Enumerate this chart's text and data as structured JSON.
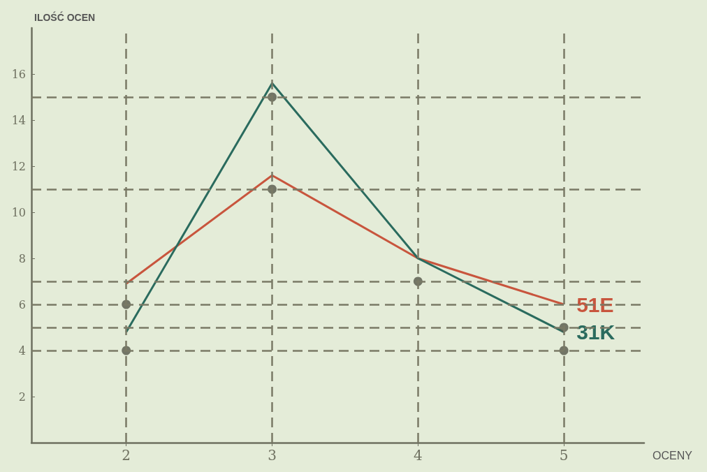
{
  "chart_data": {
    "type": "line",
    "xlabel": "OCENY",
    "ylabel": "ILOŚĆ OCEN",
    "x": [
      2,
      3,
      4,
      5
    ],
    "series": [
      {
        "name": "51E",
        "color": "#c8553d",
        "values": [
          6.9,
          11.6,
          8,
          6
        ],
        "marker": "none"
      },
      {
        "name": "31K",
        "color": "#2a6b5e",
        "values": [
          4.8,
          15.6,
          8,
          4.8
        ],
        "marker": "none"
      },
      {
        "type": "scatter",
        "color": "#55574a",
        "x": [
          2,
          2,
          3,
          3,
          4,
          5,
          5
        ],
        "values": [
          6,
          4,
          15,
          11,
          7,
          5,
          4
        ],
        "marker": "circle"
      }
    ],
    "xlim": [
      1.35,
      5.55
    ],
    "xticks": [
      2,
      3,
      4,
      5
    ],
    "ylim": [
      0,
      18
    ],
    "yticks": [
      2,
      4,
      6,
      8,
      10,
      12,
      14,
      16
    ],
    "ref_lines": [
      {
        "axis": "y",
        "value": 15,
        "color": "#7a7a66",
        "line_style": "dashed"
      },
      {
        "axis": "y",
        "value": 11,
        "color": "#7a7a66",
        "line_style": "dashed"
      },
      {
        "axis": "y",
        "value": 7,
        "color": "#7a7a66",
        "line_style": "dashed"
      },
      {
        "axis": "y",
        "value": 6,
        "color": "#7a7a66",
        "line_style": "dashed"
      },
      {
        "axis": "y",
        "value": 5,
        "color": "#7a7a66",
        "line_style": "dashed"
      },
      {
        "axis": "y",
        "value": 4,
        "color": "#7a7a66",
        "line_style": "dashed"
      },
      {
        "axis": "x",
        "value": 2,
        "color": "#7a7a66",
        "line_style": "dashed"
      },
      {
        "axis": "x",
        "value": 3,
        "color": "#7a7a66",
        "line_style": "dashed"
      },
      {
        "axis": "x",
        "value": 4,
        "color": "#7a7a66",
        "line_style": "dashed"
      },
      {
        "axis": "x",
        "value": 5,
        "color": "#7a7a66",
        "line_style": "dashed"
      }
    ],
    "grid": false,
    "legend": false
  }
}
